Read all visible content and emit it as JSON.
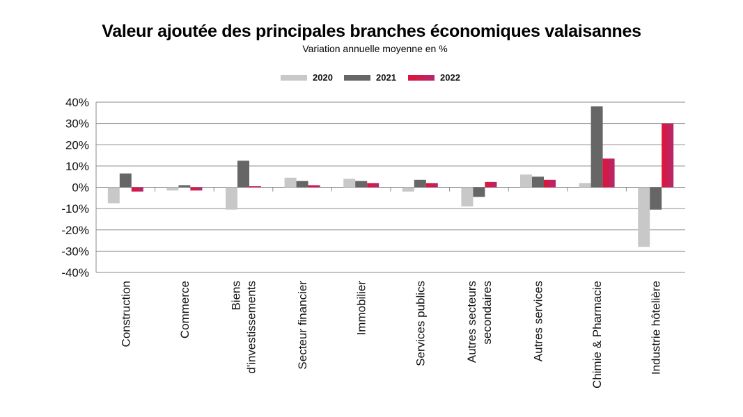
{
  "chart_data": {
    "type": "bar",
    "title": "Valeur ajoutée des principales branches économiques valaisannes",
    "subtitle": "Variation annuelle moyenne en %",
    "xlabel": "",
    "ylabel": "",
    "ylim": [
      -40,
      40
    ],
    "yticks": [
      "40%",
      "30%",
      "20%",
      "10%",
      "0%",
      "-10%",
      "-20%",
      "-30%",
      "-40%"
    ],
    "ytick_values": [
      40,
      30,
      20,
      10,
      0,
      -10,
      -20,
      -30,
      -40
    ],
    "grid": true,
    "legend_position": "top-center",
    "categories": [
      [
        "Construction"
      ],
      [
        "Commerce"
      ],
      [
        "Biens",
        "d'investissements"
      ],
      [
        "Secteur financier"
      ],
      [
        "Immobilier"
      ],
      [
        "Services publics"
      ],
      [
        "Autres secteurs",
        "secondaires"
      ],
      [
        "Autres services"
      ],
      [
        "Chimie & Pharmacie"
      ],
      [
        "Industrie hôtelière"
      ]
    ],
    "series": [
      {
        "name": "2020",
        "color": "#c8c8c8",
        "values": [
          -7.5,
          -1.5,
          -10.5,
          4.5,
          4.0,
          -2.0,
          -9.0,
          6.0,
          2.0,
          -28.0
        ]
      },
      {
        "name": "2021",
        "color": "#666666",
        "values": [
          6.5,
          1.0,
          12.5,
          3.0,
          3.0,
          3.5,
          -4.5,
          5.0,
          38.0,
          -10.5
        ]
      },
      {
        "name": "2022",
        "color": "#d4163c",
        "values": [
          -2.0,
          -1.5,
          0.5,
          1.0,
          2.0,
          2.0,
          2.5,
          3.5,
          13.5,
          30.0
        ]
      }
    ]
  }
}
